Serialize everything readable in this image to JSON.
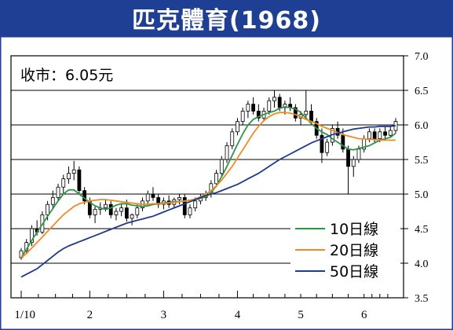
{
  "title": "匹克體育(1968)",
  "chart_data": {
    "type": "line",
    "close_label": "收市：6.05元",
    "ylim": [
      3.5,
      7.0
    ],
    "y_ticks": [
      "3.5",
      "4.0",
      "4.5",
      "5.0",
      "5.5",
      "6.0",
      "6.5",
      "7.0"
    ],
    "x_ticks": [
      "1/10",
      "2",
      "3",
      "4",
      "5",
      "6"
    ],
    "legend_position": "bottom-right",
    "colors": {
      "ma10": "#2e9447",
      "ma20": "#f08a24",
      "ma50": "#1f3a8a",
      "candle": "#000000",
      "background": "#ffffff",
      "frame": "#1f3f94"
    },
    "candles": [
      [
        4.08,
        4.22,
        4.05,
        4.18
      ],
      [
        4.18,
        4.35,
        4.15,
        4.3
      ],
      [
        4.3,
        4.55,
        4.25,
        4.5
      ],
      [
        4.5,
        4.62,
        4.4,
        4.45
      ],
      [
        4.45,
        4.75,
        4.42,
        4.7
      ],
      [
        4.7,
        4.9,
        4.62,
        4.85
      ],
      [
        4.85,
        5.05,
        4.78,
        4.95
      ],
      [
        4.95,
        5.15,
        4.9,
        5.1
      ],
      [
        5.1,
        5.28,
        5.0,
        5.22
      ],
      [
        5.22,
        5.4,
        5.15,
        5.3
      ],
      [
        5.3,
        5.48,
        5.2,
        5.35
      ],
      [
        5.35,
        5.4,
        5.0,
        5.05
      ],
      [
        5.05,
        5.1,
        4.85,
        4.9
      ],
      [
        4.9,
        4.95,
        4.65,
        4.7
      ],
      [
        4.7,
        4.82,
        4.58,
        4.78
      ],
      [
        4.78,
        4.88,
        4.7,
        4.8
      ],
      [
        4.8,
        4.92,
        4.75,
        4.85
      ],
      [
        4.85,
        4.9,
        4.65,
        4.7
      ],
      [
        4.7,
        4.8,
        4.62,
        4.75
      ],
      [
        4.75,
        4.85,
        4.68,
        4.8
      ],
      [
        4.8,
        4.92,
        4.6,
        4.65
      ],
      [
        4.65,
        4.72,
        4.55,
        4.7
      ],
      [
        4.7,
        4.85,
        4.65,
        4.8
      ],
      [
        4.8,
        4.95,
        4.75,
        4.9
      ],
      [
        4.9,
        5.05,
        4.85,
        5.0
      ],
      [
        5.0,
        5.1,
        4.9,
        4.95
      ],
      [
        4.95,
        5.0,
        4.8,
        4.85
      ],
      [
        4.85,
        4.95,
        4.78,
        4.9
      ],
      [
        4.9,
        4.98,
        4.8,
        4.85
      ],
      [
        4.85,
        4.95,
        4.8,
        4.92
      ],
      [
        4.92,
        5.0,
        4.85,
        4.95
      ],
      [
        4.95,
        5.0,
        4.65,
        4.7
      ],
      [
        4.7,
        4.85,
        4.65,
        4.8
      ],
      [
        4.8,
        4.95,
        4.75,
        4.9
      ],
      [
        4.9,
        5.0,
        4.85,
        4.95
      ],
      [
        4.95,
        5.05,
        4.9,
        5.0
      ],
      [
        5.0,
        5.2,
        4.95,
        5.15
      ],
      [
        5.15,
        5.35,
        5.1,
        5.3
      ],
      [
        5.3,
        5.55,
        5.25,
        5.5
      ],
      [
        5.5,
        5.75,
        5.45,
        5.7
      ],
      [
        5.7,
        5.95,
        5.65,
        5.9
      ],
      [
        5.9,
        6.1,
        5.85,
        6.05
      ],
      [
        6.05,
        6.25,
        6.0,
        6.2
      ],
      [
        6.2,
        6.35,
        6.1,
        6.3
      ],
      [
        6.3,
        6.4,
        6.15,
        6.2
      ],
      [
        6.2,
        6.3,
        6.05,
        6.1
      ],
      [
        6.1,
        6.25,
        6.05,
        6.2
      ],
      [
        6.2,
        6.4,
        6.15,
        6.35
      ],
      [
        6.35,
        6.5,
        6.25,
        6.4
      ],
      [
        6.4,
        6.45,
        6.2,
        6.25
      ],
      [
        6.25,
        6.35,
        6.15,
        6.3
      ],
      [
        6.3,
        6.4,
        6.2,
        6.25
      ],
      [
        6.25,
        6.3,
        6.05,
        6.1
      ],
      [
        6.1,
        6.2,
        6.0,
        6.15
      ],
      [
        6.15,
        6.5,
        6.1,
        6.2
      ],
      [
        6.2,
        6.3,
        6.0,
        6.05
      ],
      [
        6.05,
        6.1,
        5.8,
        5.85
      ],
      [
        5.85,
        5.95,
        5.45,
        5.6
      ],
      [
        5.6,
        5.8,
        5.55,
        5.75
      ],
      [
        5.75,
        6.0,
        5.7,
        5.95
      ],
      [
        5.95,
        6.05,
        5.8,
        5.85
      ],
      [
        5.85,
        5.95,
        5.6,
        5.65
      ],
      [
        5.65,
        5.7,
        5.0,
        5.4
      ],
      [
        5.4,
        5.55,
        5.25,
        5.5
      ],
      [
        5.5,
        5.7,
        5.45,
        5.65
      ],
      [
        5.65,
        5.85,
        5.6,
        5.8
      ],
      [
        5.8,
        5.95,
        5.75,
        5.9
      ],
      [
        5.9,
        5.95,
        5.75,
        5.8
      ],
      [
        5.8,
        5.95,
        5.75,
        5.9
      ],
      [
        5.9,
        5.98,
        5.8,
        5.85
      ],
      [
        5.85,
        5.98,
        5.82,
        5.92
      ],
      [
        5.92,
        6.1,
        5.88,
        6.05
      ]
    ],
    "series": [
      {
        "name": "10日線",
        "values": [
          4.08,
          4.2,
          4.33,
          4.45,
          4.56,
          4.68,
          4.79,
          4.9,
          5.0,
          5.06,
          5.06,
          5.0,
          4.94,
          4.88,
          4.83,
          4.8,
          4.78,
          4.8,
          4.84,
          4.86,
          4.86,
          4.84,
          4.83,
          4.82,
          4.83,
          4.85,
          4.86,
          4.87,
          4.88,
          4.89,
          4.89,
          4.9,
          4.91,
          4.92,
          4.94,
          4.96,
          5.02,
          5.12,
          5.25,
          5.4,
          5.56,
          5.72,
          5.87,
          6.0,
          6.08,
          6.12,
          6.15,
          6.18,
          6.2,
          6.24,
          6.26,
          6.25,
          6.23,
          6.18,
          6.1,
          6.02,
          5.95,
          5.9,
          5.86,
          5.8,
          5.75,
          5.7,
          5.65,
          5.64,
          5.66,
          5.68,
          5.7,
          5.74,
          5.78,
          5.8,
          5.82,
          5.88
        ]
      },
      {
        "name": "20日線",
        "values": [
          4.08,
          4.14,
          4.22,
          4.3,
          4.38,
          4.46,
          4.54,
          4.62,
          4.7,
          4.76,
          4.82,
          4.86,
          4.88,
          4.9,
          4.91,
          4.92,
          4.92,
          4.91,
          4.9,
          4.89,
          4.88,
          4.87,
          4.86,
          4.85,
          4.85,
          4.86,
          4.86,
          4.86,
          4.87,
          4.88,
          4.89,
          4.9,
          4.91,
          4.93,
          4.96,
          5.0,
          5.05,
          5.12,
          5.2,
          5.3,
          5.4,
          5.52,
          5.64,
          5.76,
          5.88,
          5.98,
          6.06,
          6.12,
          6.16,
          6.18,
          6.18,
          6.17,
          6.15,
          6.12,
          6.08,
          6.05,
          6.02,
          5.98,
          5.95,
          5.92,
          5.89,
          5.86,
          5.84,
          5.82,
          5.8,
          5.8,
          5.79,
          5.79,
          5.78,
          5.78,
          5.78,
          5.78
        ]
      },
      {
        "name": "50日線",
        "values": [
          3.8,
          3.84,
          3.88,
          3.92,
          3.98,
          4.04,
          4.1,
          4.16,
          4.21,
          4.25,
          4.28,
          4.31,
          4.34,
          4.37,
          4.4,
          4.43,
          4.46,
          4.49,
          4.52,
          4.55,
          4.58,
          4.6,
          4.62,
          4.64,
          4.66,
          4.68,
          4.71,
          4.74,
          4.77,
          4.8,
          4.83,
          4.86,
          4.89,
          4.92,
          4.95,
          4.98,
          5.0,
          5.02,
          5.05,
          5.08,
          5.11,
          5.14,
          5.18,
          5.22,
          5.26,
          5.3,
          5.35,
          5.4,
          5.45,
          5.5,
          5.54,
          5.58,
          5.62,
          5.66,
          5.7,
          5.74,
          5.77,
          5.8,
          5.83,
          5.86,
          5.88,
          5.9,
          5.92,
          5.94,
          5.95,
          5.96,
          5.97,
          5.97,
          5.98,
          5.98,
          5.98,
          5.99
        ]
      }
    ]
  }
}
